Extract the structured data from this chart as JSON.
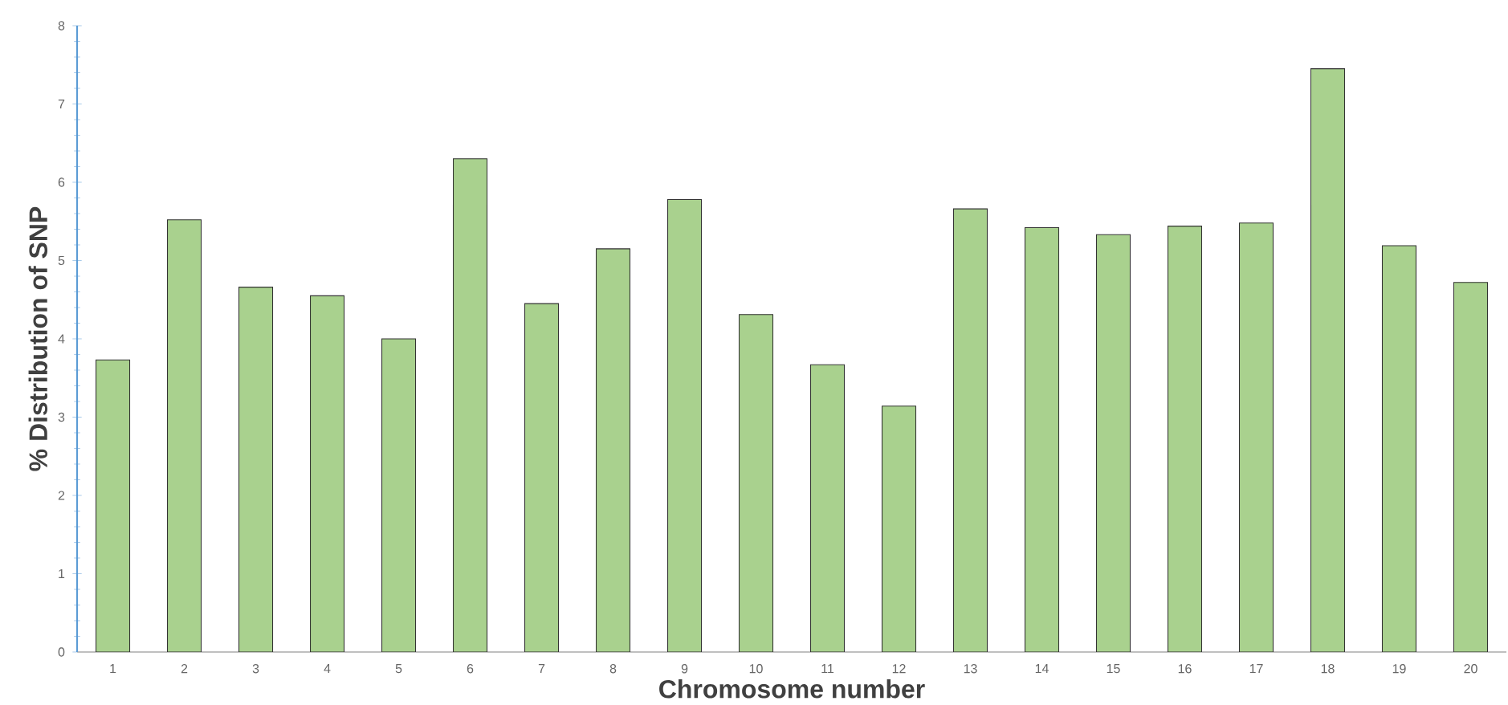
{
  "chart_data": {
    "type": "bar",
    "xlabel": "Chromosome number",
    "ylabel": "% Distribution of SNP",
    "categories": [
      "1",
      "2",
      "3",
      "4",
      "5",
      "6",
      "7",
      "8",
      "9",
      "10",
      "11",
      "12",
      "13",
      "14",
      "15",
      "16",
      "17",
      "18",
      "19",
      "20"
    ],
    "values": [
      3.73,
      5.52,
      4.66,
      4.55,
      4.0,
      6.3,
      4.45,
      5.15,
      5.78,
      4.31,
      3.67,
      3.14,
      5.66,
      5.42,
      5.33,
      5.44,
      5.48,
      7.45,
      5.19,
      4.72
    ],
    "color": "#a9d18e",
    "ylim": [
      0,
      8
    ],
    "yticks": [
      0,
      1,
      2,
      3,
      4,
      5,
      6,
      7,
      8
    ],
    "grid": false
  }
}
